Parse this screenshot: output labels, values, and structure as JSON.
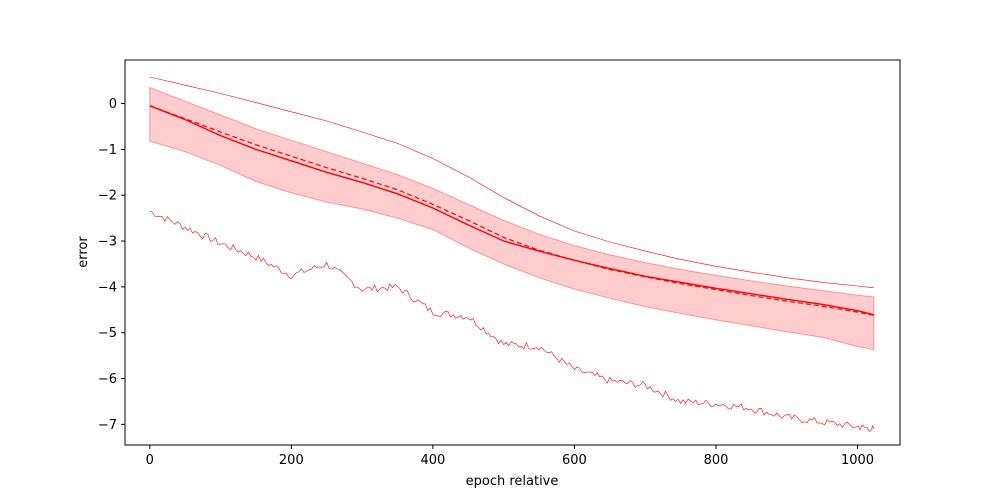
{
  "chart_data": {
    "type": "line",
    "title": "",
    "xlabel": "epoch relative",
    "ylabel": "error",
    "xlim": [
      -35,
      1060
    ],
    "ylim": [
      -7.45,
      0.95
    ],
    "grid": false,
    "legend": "none",
    "xticks": [
      0,
      200,
      400,
      600,
      800,
      1000
    ],
    "xtick_labels": [
      "0",
      "200",
      "400",
      "600",
      "800",
      "1000"
    ],
    "yticks": [
      0,
      -1,
      -2,
      -3,
      -4,
      -5,
      -6,
      -7
    ],
    "ytick_labels": [
      "0",
      "−1",
      "−2",
      "−3",
      "−4",
      "−5",
      "−6",
      "−7"
    ],
    "colors": {
      "line": "#ff0000",
      "band": "#ffc8c8",
      "axis": "#000000"
    },
    "x": [
      0,
      50,
      100,
      150,
      200,
      250,
      300,
      350,
      400,
      450,
      500,
      550,
      600,
      650,
      700,
      750,
      800,
      850,
      900,
      950,
      1000,
      1023
    ],
    "band": {
      "upper": [
        0.35,
        0.05,
        -0.25,
        -0.55,
        -0.8,
        -1.05,
        -1.3,
        -1.55,
        -1.85,
        -2.2,
        -2.55,
        -2.85,
        -3.1,
        -3.3,
        -3.47,
        -3.62,
        -3.75,
        -3.87,
        -3.98,
        -4.08,
        -4.18,
        -4.22
      ],
      "lower": [
        -0.82,
        -1.05,
        -1.35,
        -1.7,
        -1.95,
        -2.15,
        -2.3,
        -2.5,
        -2.75,
        -3.15,
        -3.5,
        -3.8,
        -4.05,
        -4.25,
        -4.43,
        -4.58,
        -4.72,
        -4.85,
        -4.98,
        -5.1,
        -5.3,
        -5.37
      ]
    },
    "series": [
      {
        "style": "solid",
        "values": [
          -0.05,
          -0.35,
          -0.7,
          -1.0,
          -1.25,
          -1.5,
          -1.72,
          -1.97,
          -2.28,
          -2.65,
          -3.0,
          -3.22,
          -3.42,
          -3.6,
          -3.77,
          -3.9,
          -4.03,
          -4.15,
          -4.27,
          -4.38,
          -4.52,
          -4.61
        ]
      },
      {
        "style": "dashed",
        "values": [
          -0.05,
          -0.33,
          -0.62,
          -0.9,
          -1.15,
          -1.4,
          -1.63,
          -1.88,
          -2.2,
          -2.55,
          -2.92,
          -3.2,
          -3.42,
          -3.62,
          -3.78,
          -3.93,
          -4.06,
          -4.19,
          -4.31,
          -4.42,
          -4.55,
          -4.62
        ]
      },
      {
        "style": "thin",
        "values": [
          0.58,
          0.4,
          0.22,
          0.02,
          -0.18,
          -0.38,
          -0.62,
          -0.87,
          -1.2,
          -1.6,
          -2.05,
          -2.45,
          -2.78,
          -3.02,
          -3.22,
          -3.4,
          -3.55,
          -3.68,
          -3.8,
          -3.9,
          -3.98,
          -4.02
        ]
      },
      {
        "style": "noisy",
        "values": [
          -2.35,
          -2.7,
          -3.05,
          -3.35,
          -3.75,
          -3.5,
          -4.05,
          -4.0,
          -4.55,
          -4.65,
          -5.25,
          -5.3,
          -5.8,
          -6.05,
          -6.15,
          -6.5,
          -6.55,
          -6.65,
          -6.85,
          -6.95,
          -7.05,
          -7.1
        ]
      }
    ]
  }
}
